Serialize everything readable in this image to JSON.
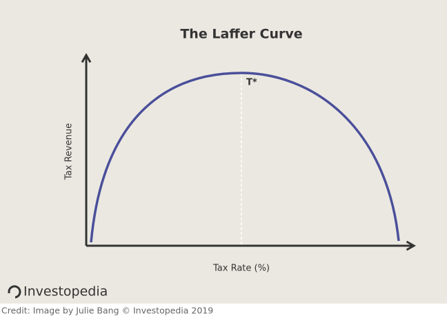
{
  "header": {
    "title": "The Laffer Curve"
  },
  "axes": {
    "y_label": "Tax Revenue",
    "x_label": "Tax Rate (%)"
  },
  "annotations": {
    "peak": "T*"
  },
  "footer": {
    "logo": "Investopedia",
    "credit": "Credit: Image by Julie Bang © Investopedia 2019"
  }
}
